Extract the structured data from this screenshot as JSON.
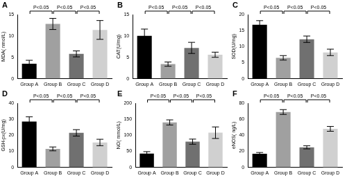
{
  "chart_data": [
    {
      "type": "bar",
      "title": "A",
      "y_label": "MDA( nmol/L)",
      "categories": [
        "Group A",
        "Group B",
        "Group C",
        "Group D"
      ],
      "values": [
        3.5,
        12.8,
        5.8,
        11.4
      ],
      "errors": [
        0.8,
        1.3,
        0.7,
        2.2
      ],
      "colors": [
        "#000000",
        "#a0a0a0",
        "#707070",
        "#d0d0d0"
      ],
      "ylim": [
        0,
        15
      ],
      "yticks": [
        0,
        5,
        10,
        15
      ],
      "grid": false,
      "annotations": [
        {
          "from": "Group A",
          "to": "Group B",
          "text": "P<0.05"
        },
        {
          "from": "Group B",
          "to": "Group C",
          "text": "P<0.05"
        },
        {
          "from": "Group C",
          "to": "Group D",
          "text": "P<0.05"
        }
      ]
    },
    {
      "type": "bar",
      "title": "B",
      "y_label": "CAT(U/mg)",
      "categories": [
        "Group A",
        "Group B",
        "Group C",
        "Group D"
      ],
      "values": [
        10.0,
        3.4,
        7.2,
        5.6
      ],
      "errors": [
        1.6,
        0.5,
        1.3,
        0.6
      ],
      "colors": [
        "#000000",
        "#a0a0a0",
        "#707070",
        "#d0d0d0"
      ],
      "ylim": [
        0,
        15
      ],
      "yticks": [
        0,
        5,
        10,
        15
      ],
      "grid": false,
      "annotations": [
        {
          "from": "Group A",
          "to": "Group B",
          "text": "P<0.05"
        },
        {
          "from": "Group B",
          "to": "Group C",
          "text": "P<0.05"
        },
        {
          "from": "Group C",
          "to": "Group D",
          "text": "P<0.05"
        }
      ]
    },
    {
      "type": "bar",
      "title": "C",
      "y_label": "SOD(U/mg)",
      "categories": [
        "Group A",
        "Group B",
        "Group C",
        "Group D"
      ],
      "values": [
        16.8,
        6.5,
        12.3,
        8.2
      ],
      "errors": [
        1.3,
        0.7,
        1.0,
        1.0
      ],
      "colors": [
        "#000000",
        "#a0a0a0",
        "#707070",
        "#d0d0d0"
      ],
      "ylim": [
        0,
        20
      ],
      "yticks": [
        0,
        5,
        10,
        15,
        20
      ],
      "grid": false,
      "annotations": [
        {
          "from": "Group A",
          "to": "Group B",
          "text": "P<0.05"
        },
        {
          "from": "Group B",
          "to": "Group C",
          "text": "P<0.05"
        },
        {
          "from": "Group C",
          "to": "Group D",
          "text": "P<0.05"
        }
      ]
    },
    {
      "type": "bar",
      "title": "D",
      "y_label": "GSH-px(U/mg)",
      "categories": [
        "Group A",
        "Group B",
        "Group C",
        "Group D"
      ],
      "values": [
        28.5,
        11.5,
        21.5,
        15.5
      ],
      "errors": [
        3.0,
        1.2,
        2.0,
        2.0
      ],
      "colors": [
        "#000000",
        "#a0a0a0",
        "#707070",
        "#d0d0d0"
      ],
      "ylim": [
        0,
        40
      ],
      "yticks": [
        0,
        10,
        20,
        30,
        40
      ],
      "grid": false,
      "annotations": [
        {
          "from": "Group A",
          "to": "Group B",
          "text": "P<0.05"
        },
        {
          "from": "Group B",
          "to": "Group C",
          "text": "P<0.05"
        },
        {
          "from": "Group C",
          "to": "Group D",
          "text": "P<0.05"
        }
      ]
    },
    {
      "type": "bar",
      "title": "E",
      "y_label": "NO( mmol/L)",
      "categories": [
        "Group A",
        "Group B",
        "Group C",
        "Group D"
      ],
      "values": [
        43,
        140,
        80,
        108
      ],
      "errors": [
        6,
        8,
        8,
        18
      ],
      "colors": [
        "#000000",
        "#a0a0a0",
        "#707070",
        "#d0d0d0"
      ],
      "ylim": [
        0,
        200
      ],
      "yticks": [
        0,
        50,
        100,
        150,
        200
      ],
      "grid": false,
      "annotations": [
        {
          "from": "Group A",
          "to": "Group B",
          "text": "P<0.05"
        },
        {
          "from": "Group B",
          "to": "Group C",
          "text": "P<0.05"
        },
        {
          "from": "Group C",
          "to": "Group D",
          "text": "P<0.05"
        }
      ]
    },
    {
      "type": "bar",
      "title": "F",
      "y_label": "eNOS( ng/L)",
      "categories": [
        "Group A",
        "Group B",
        "Group C",
        "Group D"
      ],
      "values": [
        17,
        69,
        25,
        48
      ],
      "errors": [
        1.5,
        3,
        2,
        3
      ],
      "colors": [
        "#000000",
        "#a0a0a0",
        "#707070",
        "#d0d0d0"
      ],
      "ylim": [
        0,
        80
      ],
      "yticks": [
        0,
        20,
        40,
        60,
        80
      ],
      "grid": false,
      "annotations": [
        {
          "from": "Group A",
          "to": "Group B",
          "text": "P<0.05"
        },
        {
          "from": "Group B",
          "to": "Group C",
          "text": "P<0.05"
        },
        {
          "from": "Group C",
          "to": "Group D",
          "text": "P<0.05"
        }
      ]
    }
  ]
}
